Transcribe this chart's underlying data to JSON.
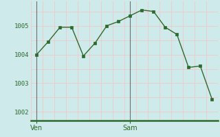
{
  "x": [
    0,
    1,
    2,
    3,
    4,
    5,
    6,
    7,
    8,
    9,
    10,
    11,
    12,
    13,
    14,
    15
  ],
  "y": [
    1004.0,
    1004.45,
    1004.95,
    1004.95,
    1003.95,
    1004.4,
    1005.0,
    1005.15,
    1005.35,
    1005.55,
    1005.5,
    1004.95,
    1004.7,
    1003.55,
    1003.6,
    1002.45
  ],
  "ven_x": 0,
  "sam_x": 8,
  "xtick_positions": [
    0,
    8
  ],
  "xtick_labels": [
    "Ven",
    "Sam"
  ],
  "ytick_positions": [
    1002,
    1003,
    1004,
    1005
  ],
  "ytick_labels": [
    "1002",
    "1003",
    "1004",
    "1005"
  ],
  "ylim": [
    1001.7,
    1005.85
  ],
  "xlim": [
    -0.5,
    15.5
  ],
  "line_color": "#2d6a2d",
  "marker_color": "#2d6a2d",
  "bg_color": "#ceeaea",
  "grid_color_v": "#f0c8c8",
  "grid_color_h": "#f0c8c8",
  "axis_color": "#2d6a2d",
  "tick_label_color": "#2d6a2d",
  "vline_color": "#707070"
}
